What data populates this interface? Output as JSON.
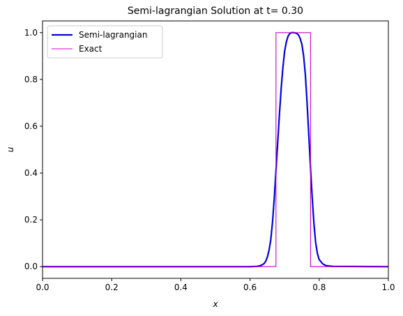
{
  "chart_data": {
    "type": "line",
    "title": "Semi-lagrangian Solution at t= 0.30",
    "xlabel": "x",
    "ylabel": "u",
    "xlim": [
      0.0,
      1.0
    ],
    "ylim": [
      -0.05,
      1.05
    ],
    "grid": false,
    "legend_position": "top-left",
    "xticks": [
      "0.0",
      "0.2",
      "0.4",
      "0.6",
      "0.8",
      "1.0"
    ],
    "yticks": [
      "0.0",
      "0.2",
      "0.4",
      "0.6",
      "0.8",
      "1.0"
    ],
    "xtick_values": [
      0.0,
      0.2,
      0.4,
      0.6,
      0.8,
      1.0
    ],
    "ytick_values": [
      0.0,
      0.2,
      0.4,
      0.6,
      0.8,
      1.0
    ],
    "series": [
      {
        "name": "Semi-lagrangian",
        "color": "#0000dd",
        "x": [
          0.0,
          0.6,
          0.62,
          0.63,
          0.64,
          0.645,
          0.65,
          0.655,
          0.66,
          0.665,
          0.67,
          0.675,
          0.68,
          0.685,
          0.69,
          0.695,
          0.7,
          0.705,
          0.71,
          0.715,
          0.72,
          0.725,
          0.73,
          0.735,
          0.74,
          0.745,
          0.75,
          0.755,
          0.76,
          0.765,
          0.77,
          0.775,
          0.78,
          0.785,
          0.79,
          0.795,
          0.8,
          0.81,
          0.82,
          0.84,
          1.0
        ],
        "y": [
          0.0,
          0.0,
          0.001,
          0.004,
          0.012,
          0.022,
          0.04,
          0.07,
          0.115,
          0.19,
          0.29,
          0.41,
          0.53,
          0.65,
          0.76,
          0.85,
          0.92,
          0.96,
          0.985,
          0.996,
          1.0,
          1.0,
          0.999,
          0.997,
          0.99,
          0.975,
          0.95,
          0.9,
          0.82,
          0.7,
          0.56,
          0.42,
          0.29,
          0.18,
          0.1,
          0.055,
          0.03,
          0.012,
          0.004,
          0.001,
          0.0
        ]
      },
      {
        "name": "Exact",
        "color": "#cc00cc",
        "x": [
          0.0,
          0.675,
          0.675,
          0.775,
          0.775,
          1.0
        ],
        "y": [
          0.0,
          0.0,
          1.0,
          1.0,
          0.0,
          0.0
        ]
      }
    ]
  }
}
